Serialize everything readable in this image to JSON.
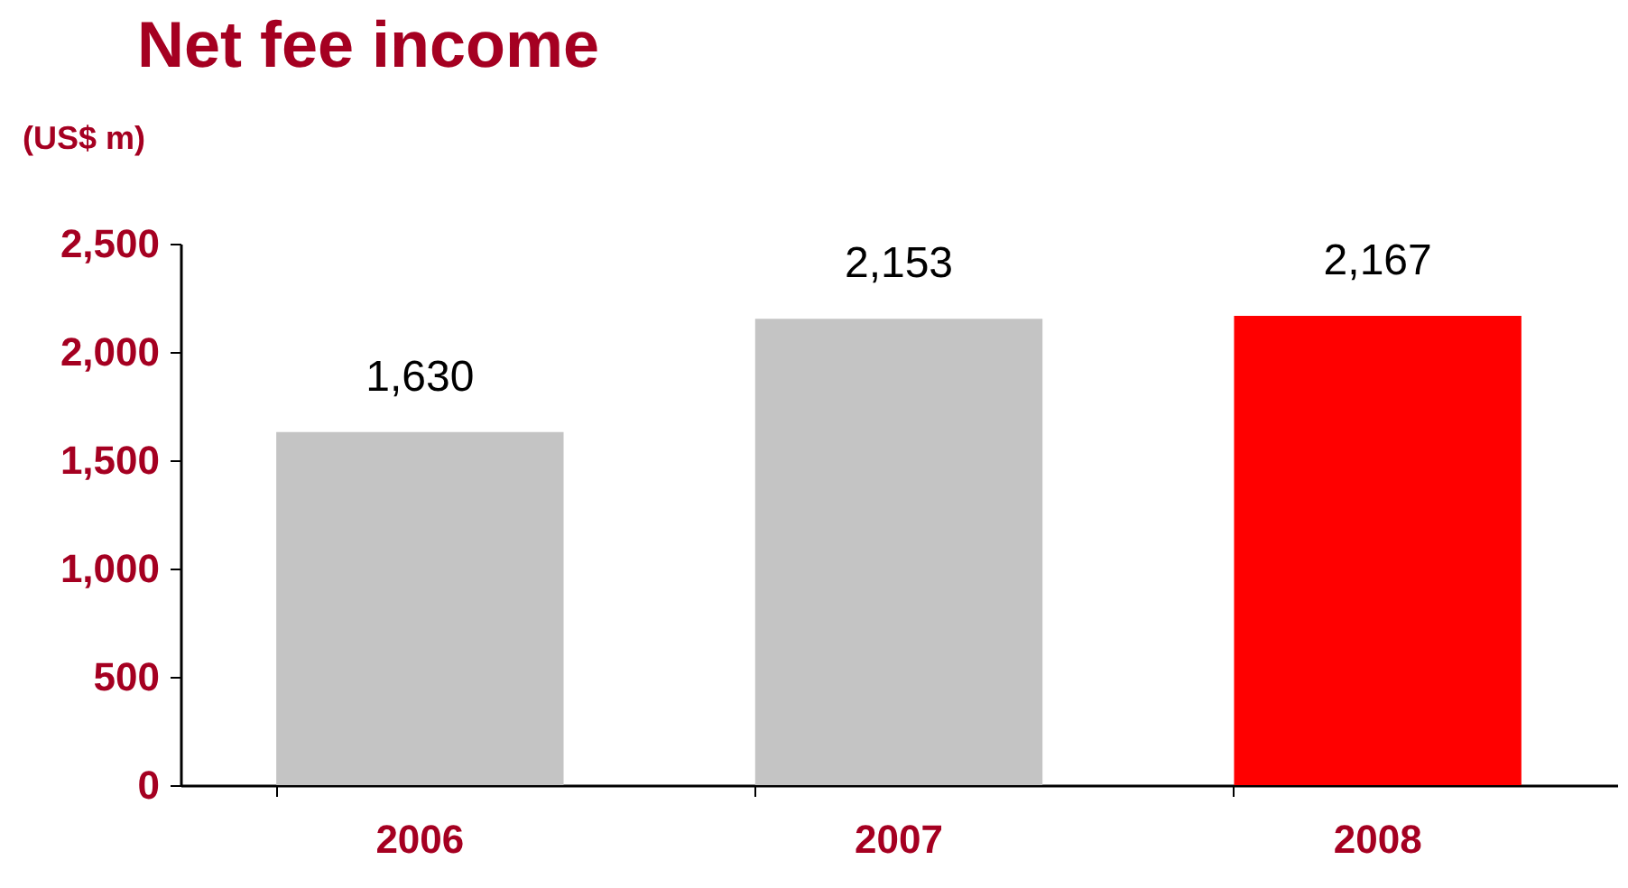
{
  "chart_data": {
    "type": "bar",
    "title": "Net fee income",
    "ylabel": "(US$ m)",
    "categories": [
      "2006",
      "2007",
      "2008"
    ],
    "values": [
      1630,
      2153,
      2167
    ],
    "value_labels": [
      "1,630",
      "2,153",
      "2,167"
    ],
    "colors": [
      "#c4c4c4",
      "#c4c4c4",
      "#ff0000"
    ],
    "ylim": [
      0,
      2500
    ],
    "yticks": [
      0,
      500,
      {
        "value": 1000,
        "label": "1,000"
      },
      {
        "value": 1500,
        "label": "1,500"
      },
      {
        "value": 2000,
        "label": "2,000"
      },
      {
        "value": 2500,
        "label": "2,500"
      }
    ],
    "grid": false
  }
}
